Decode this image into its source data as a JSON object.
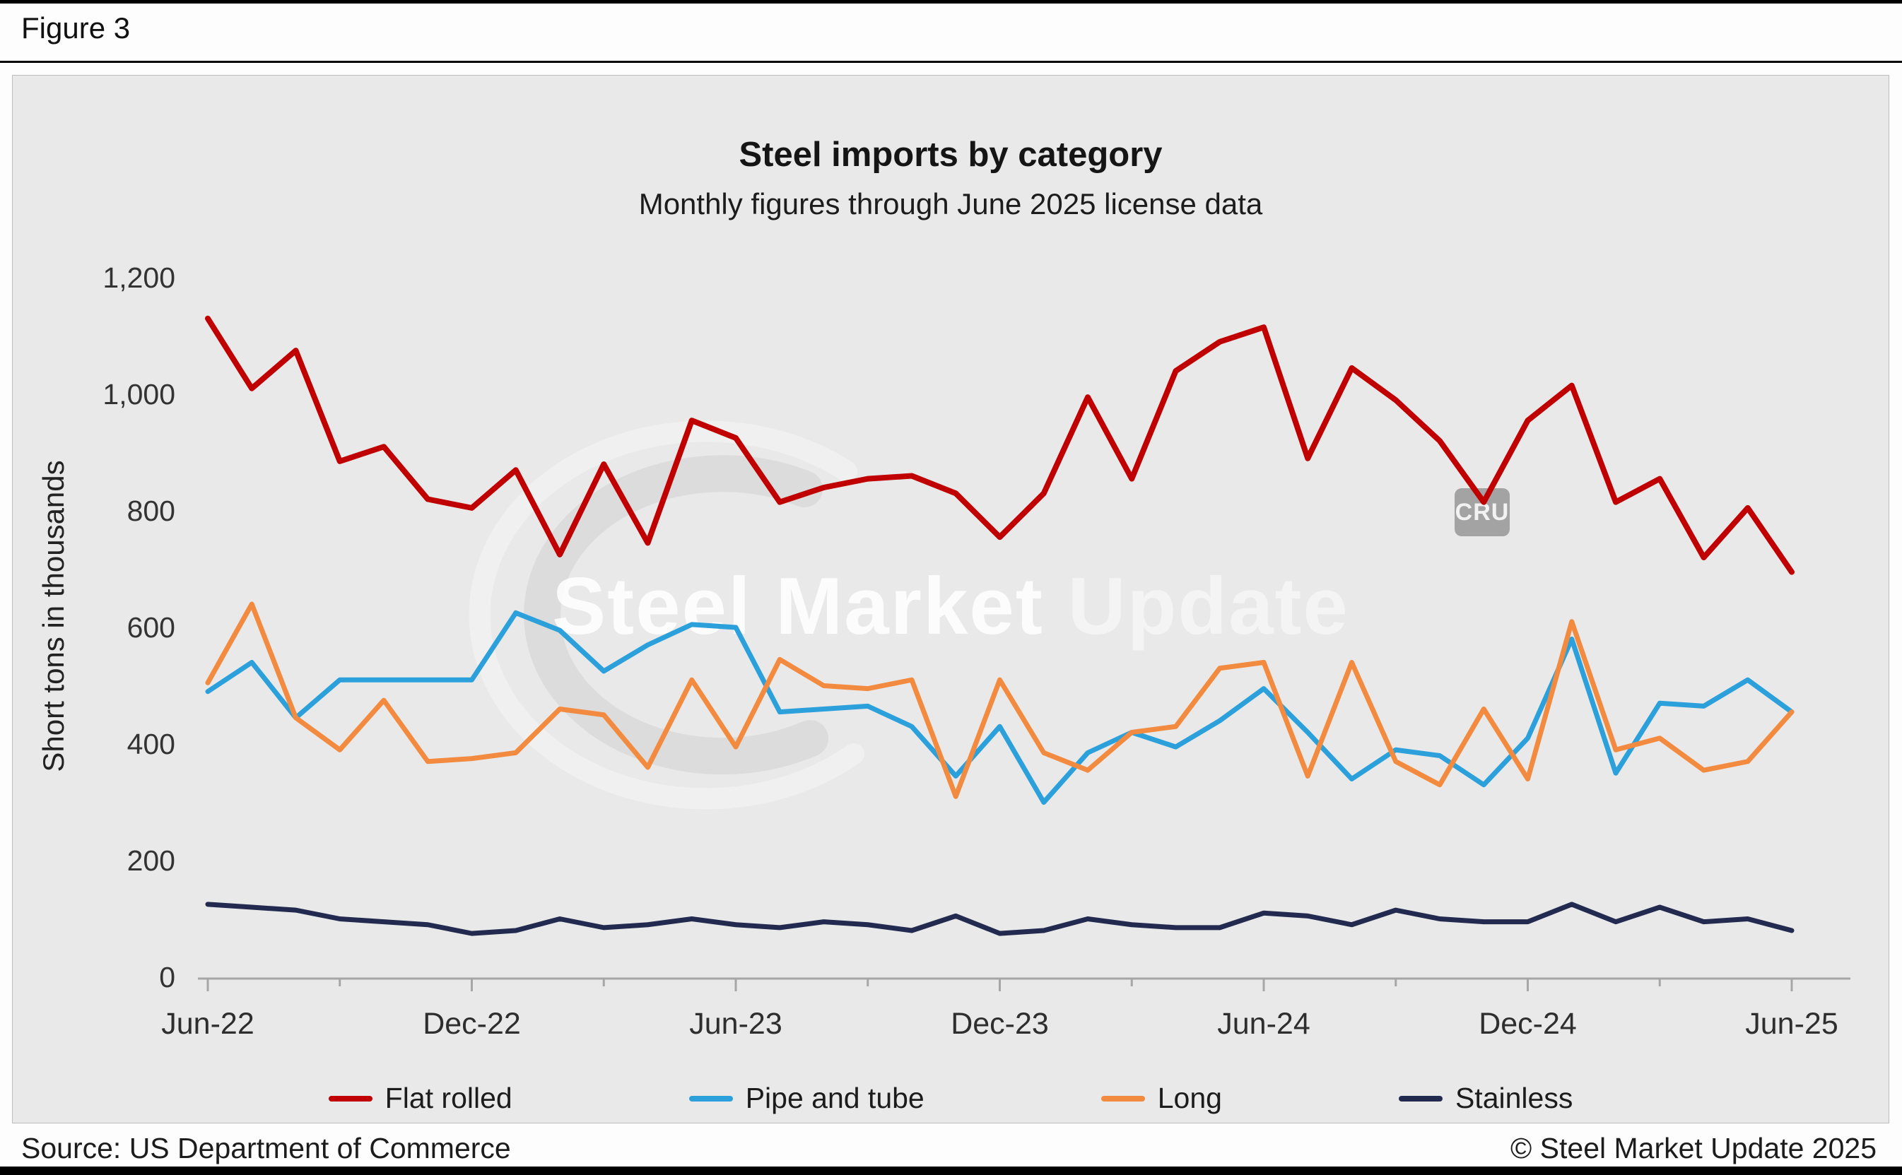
{
  "header": {
    "figure_label": "Figure 3"
  },
  "chart": {
    "title": "Steel imports by category",
    "subtitle": "Monthly figures through June 2025 license data",
    "y_axis_label": "Short tons in thousands",
    "y_tick_values": [
      0,
      200,
      400,
      600,
      800,
      1000,
      1200
    ],
    "y_tick_labels": [
      "0",
      "200",
      "400",
      "600",
      "800",
      "1,000",
      "1,200"
    ],
    "x_tick_indices": [
      0,
      6,
      12,
      18,
      24,
      30,
      36
    ],
    "x_tick_labels": [
      "Jun-22",
      "Dec-22",
      "Jun-23",
      "Dec-23",
      "Jun-24",
      "Dec-24",
      "Jun-25"
    ]
  },
  "chart_data": {
    "type": "line",
    "x": [
      "Jun-22",
      "Jul-22",
      "Aug-22",
      "Sep-22",
      "Oct-22",
      "Nov-22",
      "Dec-22",
      "Jan-23",
      "Feb-23",
      "Mar-23",
      "Apr-23",
      "May-23",
      "Jun-23",
      "Jul-23",
      "Aug-23",
      "Sep-23",
      "Oct-23",
      "Nov-23",
      "Dec-23",
      "Jan-24",
      "Feb-24",
      "Mar-24",
      "Apr-24",
      "May-24",
      "Jun-24",
      "Jul-24",
      "Aug-24",
      "Sep-24",
      "Oct-24",
      "Nov-24",
      "Dec-24",
      "Jan-25",
      "Feb-25",
      "Mar-25",
      "Apr-25",
      "May-25",
      "Jun-25"
    ],
    "series": [
      {
        "name": "Flat rolled",
        "color": "#c00000",
        "values": [
          1130,
          1010,
          1075,
          885,
          910,
          820,
          805,
          870,
          725,
          880,
          745,
          955,
          925,
          815,
          840,
          855,
          860,
          830,
          755,
          830,
          995,
          855,
          1040,
          1090,
          1115,
          890,
          1045,
          990,
          920,
          815,
          955,
          1015,
          815,
          855,
          720,
          805,
          695
        ]
      },
      {
        "name": "Pipe and tube",
        "color": "#2ba0db",
        "values": [
          490,
          540,
          445,
          510,
          510,
          510,
          510,
          625,
          595,
          525,
          570,
          605,
          600,
          455,
          460,
          465,
          430,
          345,
          430,
          300,
          385,
          420,
          395,
          440,
          495,
          420,
          340,
          390,
          380,
          330,
          410,
          580,
          350,
          470,
          465,
          510,
          455
        ]
      },
      {
        "name": "Long",
        "color": "#f28b3f",
        "values": [
          505,
          640,
          445,
          390,
          475,
          370,
          375,
          385,
          460,
          450,
          360,
          510,
          395,
          545,
          500,
          495,
          510,
          310,
          510,
          385,
          355,
          420,
          430,
          530,
          540,
          345,
          540,
          370,
          330,
          460,
          340,
          610,
          390,
          410,
          355,
          370,
          455
        ]
      },
      {
        "name": "Stainless",
        "color": "#222b4f",
        "values": [
          125,
          120,
          115,
          100,
          95,
          90,
          75,
          80,
          100,
          85,
          90,
          100,
          90,
          85,
          95,
          90,
          80,
          105,
          75,
          80,
          100,
          90,
          85,
          85,
          110,
          105,
          90,
          115,
          100,
          95,
          95,
          125,
          95,
          120,
          95,
          100,
          80
        ]
      }
    ],
    "ylim": [
      0,
      1200
    ],
    "grid": false,
    "legend_position": "bottom",
    "title": "Steel imports by category",
    "subtitle": "Monthly figures through June 2025 license data",
    "ylabel": "Short tons in thousands"
  },
  "watermark": {
    "text_bold": "Steel Market",
    "text_light": " Update",
    "badge": "CRU"
  },
  "footer": {
    "source": "Source: US Department of Commerce",
    "copyright": "© Steel Market Update 2025"
  }
}
